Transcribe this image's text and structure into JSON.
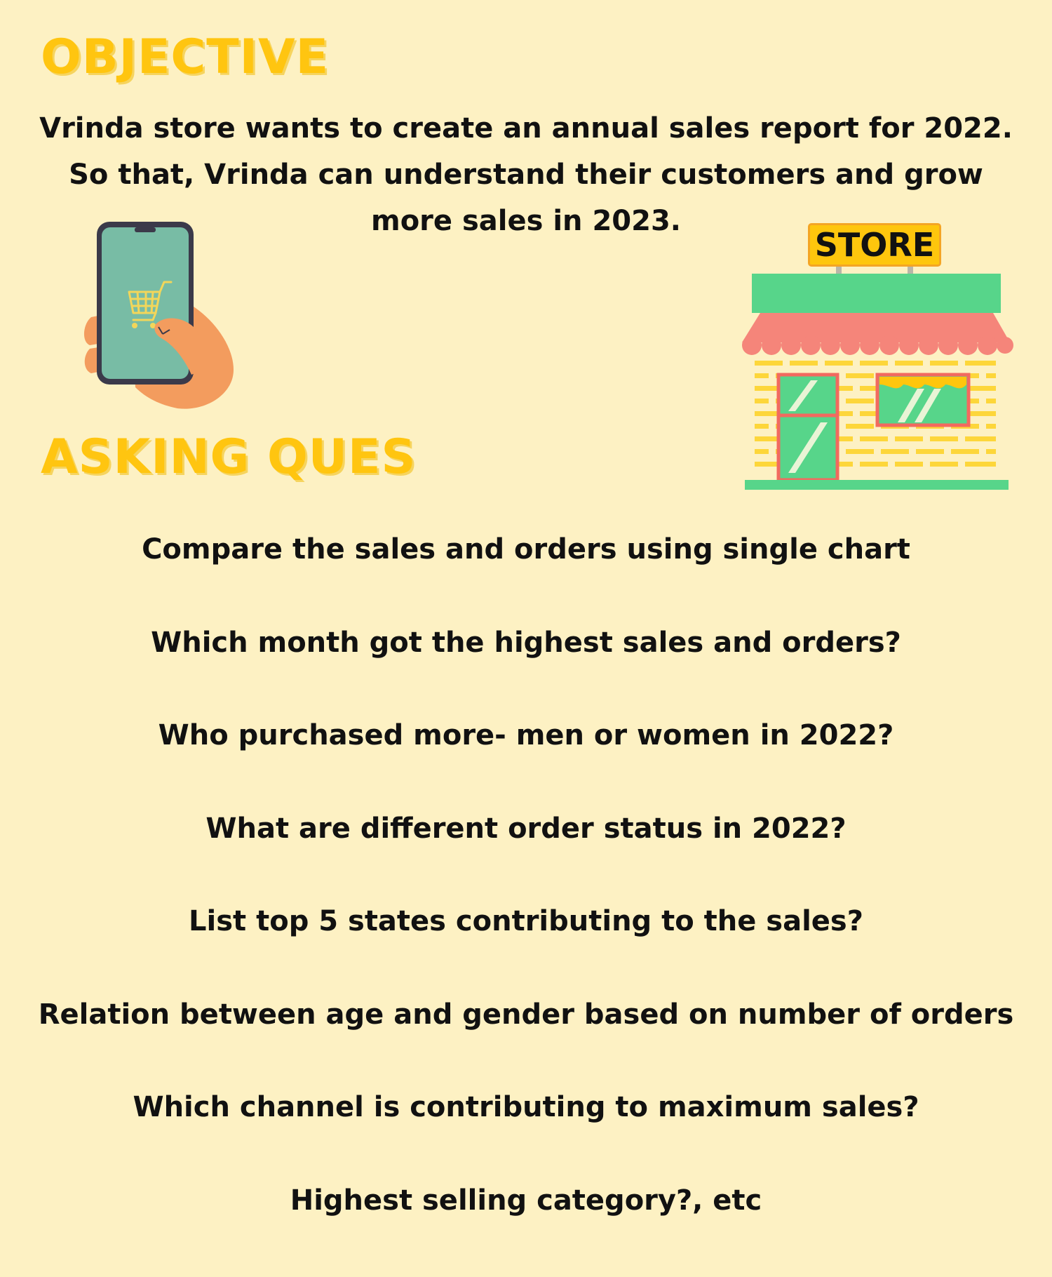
{
  "objective": {
    "heading": "OBJECTIVE",
    "lines": [
      "Vrinda store wants to create an annual sales report for 2022.",
      "So that, Vrinda can understand their customers and grow",
      "more sales in 2023."
    ]
  },
  "store_sign": "STORE",
  "asking": {
    "heading": "ASKING QUES",
    "questions": [
      "Compare the sales and orders using single chart",
      "Which month got the highest sales and orders?",
      "Who purchased more- men or women in 2022?",
      "What are different order status in 2022?",
      "List top 5 states contributing to the sales?",
      "Relation between age and gender based on number of orders",
      "Which channel is contributing to maximum sales?",
      "Highest selling category?, etc"
    ]
  },
  "icons": {
    "phone": "phone-with-cart-icon",
    "store": "storefront-icon"
  },
  "colors": {
    "background": "#fdf1c3",
    "heading": "#ffc510",
    "text": "#111111",
    "store_green": "#57d58a",
    "awning": "#f5857a",
    "brick": "#fdd63a"
  }
}
